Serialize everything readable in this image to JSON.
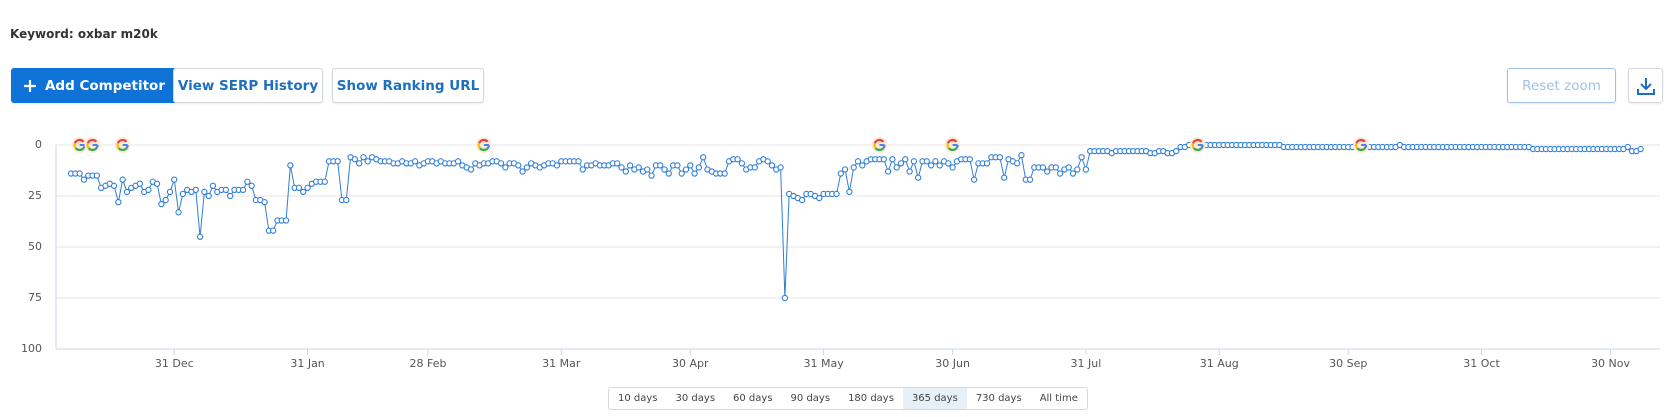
{
  "header": {
    "keyword": "Keyword: oxbar m20k"
  },
  "toolbar": {
    "add_competitor": "Add Competitor",
    "view_serp_history": "View SERP History",
    "show_ranking_url": "Show Ranking URL",
    "reset_zoom": "Reset zoom"
  },
  "chart_data": {
    "type": "line",
    "y_inverted": true,
    "color": "#2f7ed8",
    "grid": true,
    "xlim": [
      -3.5,
      369.5
    ],
    "ylim": [
      0,
      100
    ],
    "yticks": [
      0,
      25,
      50,
      75,
      100
    ],
    "xticks": [
      {
        "value": 24,
        "label": "31 Dec"
      },
      {
        "value": 55,
        "label": "31 Jan"
      },
      {
        "value": 83,
        "label": "28 Feb"
      },
      {
        "value": 114,
        "label": "31 Mar"
      },
      {
        "value": 144,
        "label": "30 Apr"
      },
      {
        "value": 175,
        "label": "31 May"
      },
      {
        "value": 205,
        "label": "30 Jun"
      },
      {
        "value": 236,
        "label": "31 Jul"
      },
      {
        "value": 267,
        "label": "31 Aug"
      },
      {
        "value": 297,
        "label": "30 Sep"
      },
      {
        "value": 328,
        "label": "31 Oct"
      },
      {
        "value": 358,
        "label": "30 Nov"
      }
    ],
    "google_updates": [
      2,
      5,
      12,
      96,
      188,
      205,
      262,
      300
    ],
    "values": [
      14,
      14,
      14,
      17,
      15,
      15,
      15,
      21,
      20,
      19,
      20,
      28,
      17,
      23,
      21,
      20,
      19,
      23,
      22,
      18,
      19,
      29,
      27,
      23,
      17,
      33,
      24,
      22,
      23,
      22,
      45,
      23,
      25,
      20,
      23,
      22,
      22,
      25,
      22,
      22,
      22,
      18,
      20,
      27,
      27,
      28,
      42,
      42,
      37,
      37,
      37,
      10,
      21,
      21,
      23,
      21,
      19,
      18,
      18,
      18,
      8,
      8,
      8,
      27,
      27,
      6,
      7,
      9,
      6,
      8,
      6,
      7,
      8,
      8,
      8,
      9,
      9,
      8,
      9,
      9,
      8,
      10,
      9,
      8,
      8,
      9,
      8,
      9,
      9,
      9,
      8,
      10,
      11,
      12,
      9,
      10,
      9,
      9,
      8,
      8,
      9,
      11,
      9,
      9,
      10,
      13,
      11,
      9,
      10,
      11,
      10,
      9,
      9,
      10,
      8,
      8,
      8,
      8,
      8,
      12,
      10,
      10,
      9,
      10,
      10,
      10,
      9,
      9,
      11,
      13,
      10,
      12,
      11,
      13,
      12,
      15,
      10,
      10,
      12,
      14,
      10,
      10,
      14,
      12,
      10,
      14,
      11,
      6,
      12,
      13,
      14,
      14,
      14,
      8,
      7,
      7,
      9,
      12,
      11,
      11,
      8,
      7,
      8,
      10,
      12,
      11,
      75,
      24,
      25,
      26,
      27,
      24,
      24,
      25,
      26,
      24,
      24,
      24,
      24,
      14,
      12,
      23,
      11,
      8,
      10,
      8,
      7,
      7,
      7,
      7,
      13,
      7,
      11,
      9,
      7,
      13,
      8,
      16,
      8,
      8,
      10,
      8,
      10,
      8,
      9,
      11,
      8,
      7,
      7,
      7,
      17,
      9,
      9,
      9,
      6,
      6,
      6,
      16,
      7,
      8,
      9,
      5,
      17,
      17,
      11,
      11,
      11,
      13,
      11,
      11,
      14,
      12,
      11,
      14,
      12,
      6,
      12,
      3,
      3,
      3,
      3,
      3,
      4,
      3,
      3,
      3,
      3,
      3,
      3,
      3,
      3,
      4,
      4,
      3,
      3,
      4,
      4,
      3,
      1,
      1,
      0,
      0,
      0,
      0,
      0,
      0,
      0,
      0,
      0,
      0,
      0,
      0,
      0,
      0,
      0,
      0,
      0,
      0,
      0,
      0,
      0,
      0,
      1,
      1,
      1,
      1,
      1,
      1,
      1,
      1,
      1,
      1,
      1,
      1,
      1,
      1,
      1,
      1,
      1,
      0,
      1,
      1,
      1,
      1,
      1,
      1,
      1,
      1,
      1,
      0,
      1,
      1,
      1,
      1,
      1,
      1,
      1,
      1,
      1,
      1,
      1,
      1,
      1,
      1,
      1,
      1,
      1,
      1,
      1,
      1,
      1,
      1,
      1,
      1,
      1,
      1,
      1,
      1,
      1,
      1,
      2,
      2,
      2,
      2,
      2,
      2,
      2,
      2,
      2,
      2,
      2,
      2,
      2,
      2,
      2,
      2,
      2,
      2,
      2,
      2,
      2,
      2,
      1,
      3,
      3,
      2
    ]
  },
  "range_selector": {
    "options": [
      "10 days",
      "30 days",
      "60 days",
      "90 days",
      "180 days",
      "365 days",
      "730 days",
      "All time"
    ],
    "active": 5
  }
}
